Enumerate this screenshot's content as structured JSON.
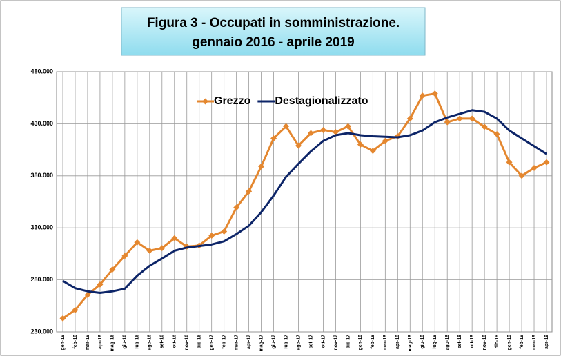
{
  "chart_data": {
    "type": "line",
    "title": "Figura 3 - Occupati in somministrazione.",
    "subtitle": "gennaio 2016 - aprile 2019",
    "categories": [
      "gen-16",
      "feb-16",
      "mar-16",
      "apr-16",
      "mag-16",
      "giu-16",
      "lug-16",
      "ago-16",
      "set-16",
      "ott-16",
      "nov-16",
      "dic-16",
      "gen-17",
      "feb-17",
      "mar-17",
      "apr-17",
      "mag-17",
      "giu-17",
      "lug-17",
      "ago-17",
      "set-17",
      "ott-17",
      "nov-17",
      "dic-17",
      "gen-18",
      "feb-18",
      "mar-18",
      "apr-18",
      "mag-18",
      "giu-18",
      "lug-18",
      "ago-18",
      "set-18",
      "ott-18",
      "nov-18",
      "dic-18",
      "gen-19",
      "feb-19",
      "mar-19",
      "apr-19"
    ],
    "series": [
      {
        "name": "Grezzo",
        "color": "#e4872f",
        "marker": "diamond",
        "values": [
          243000,
          251000,
          265500,
          275500,
          290000,
          303000,
          316000,
          308000,
          310500,
          320000,
          312000,
          313000,
          322500,
          326500,
          349500,
          365000,
          389000,
          416000,
          427500,
          409000,
          421000,
          424000,
          422000,
          427500,
          410000,
          404000,
          413500,
          418000,
          435000,
          457000,
          459000,
          431500,
          435000,
          435000,
          427000,
          420000,
          393000,
          380000,
          387500,
          393000
        ]
      },
      {
        "name": "Destagionalizzato",
        "color": "#0d2568",
        "marker": "none",
        "values": [
          279000,
          272000,
          269000,
          267500,
          269000,
          271500,
          284000,
          293500,
          300500,
          308000,
          311000,
          312500,
          314000,
          317000,
          324000,
          332000,
          345000,
          361000,
          379000,
          391500,
          403500,
          413500,
          419000,
          421000,
          419000,
          418000,
          417500,
          417000,
          419000,
          423500,
          431500,
          436000,
          439500,
          443000,
          441500,
          435000,
          423500,
          416000,
          408500,
          401000
        ]
      }
    ],
    "ylim": [
      230000,
      480000
    ],
    "yticks": [
      {
        "value": 230000,
        "label": "230.000"
      },
      {
        "value": 280000,
        "label": "280.000"
      },
      {
        "value": 330000,
        "label": "330.000"
      },
      {
        "value": 380000,
        "label": "380.000"
      },
      {
        "value": 430000,
        "label": "430.000"
      },
      {
        "value": 480000,
        "label": "480.000"
      }
    ],
    "grid": true,
    "legend": "top"
  }
}
